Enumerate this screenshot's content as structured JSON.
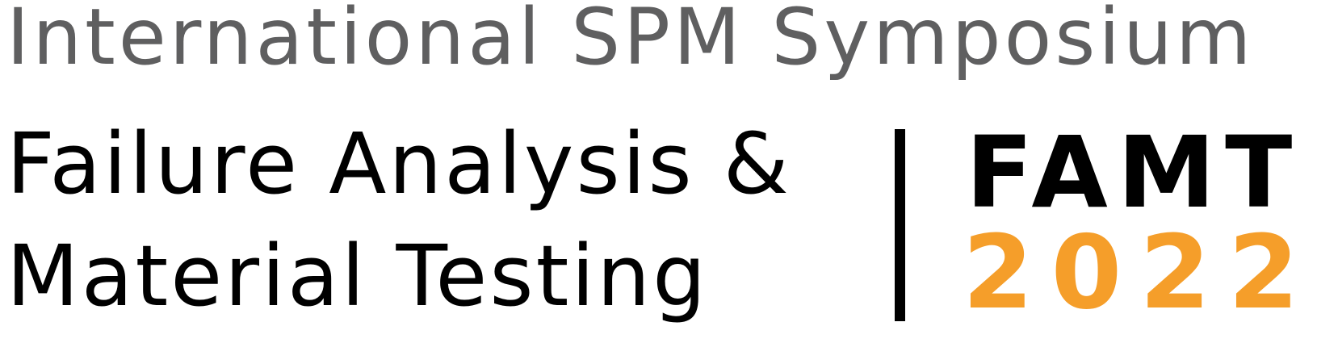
{
  "header": {
    "subtitle": "International SPM Symposium"
  },
  "title": {
    "line1": "Failure Analysis &",
    "line2": "Material Testing"
  },
  "badge": {
    "acronym": "FAMT",
    "year": "2022"
  },
  "colors": {
    "subtitle_gray": "#5f5f60",
    "text_black": "#000000",
    "accent_orange": "#f59e2a",
    "background": "#ffffff"
  }
}
